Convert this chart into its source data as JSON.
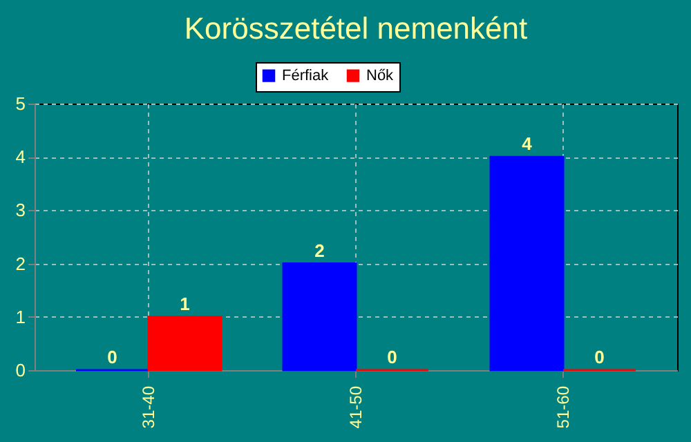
{
  "chart_data": {
    "type": "bar",
    "title": "Korösszetétel nemenként",
    "categories": [
      "31-40",
      "41-50",
      "51-60"
    ],
    "series": [
      {
        "name": "Férfiak",
        "color": "#0000ff",
        "values": [
          0,
          2,
          4
        ]
      },
      {
        "name": "Nők",
        "color": "#ff0000",
        "values": [
          1,
          0,
          0
        ]
      }
    ],
    "ylim": [
      0,
      5
    ],
    "yticks": [
      0,
      1,
      2,
      3,
      4,
      5
    ],
    "grid": true,
    "legend": "top",
    "data_labels": true
  }
}
